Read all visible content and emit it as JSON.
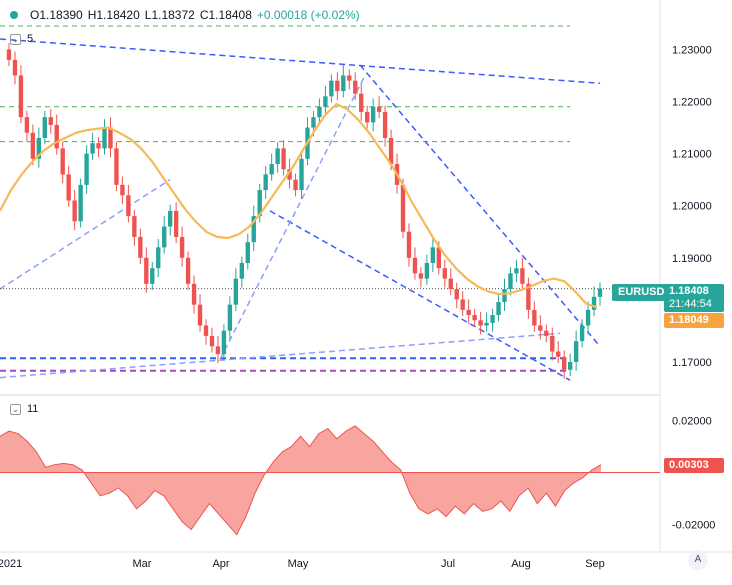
{
  "header": {
    "open": "O1.18390",
    "high": "H1.18420",
    "low": "L1.18372",
    "close": "C1.18408",
    "change": "+0.00018 (+0.02%)",
    "change_color": "#26a69a"
  },
  "indicators": {
    "ma_period": "5",
    "osc_period": "11"
  },
  "badges": {
    "symbol": "EURUSD",
    "last_price": "1.18408",
    "countdown": "21:44:54",
    "ma_value": "1.18049",
    "osc_value": "0.00303"
  },
  "chart_data": {
    "type": "line",
    "instrument": "EURUSD",
    "colors": {
      "up": "#26a69a",
      "down": "#ef5350",
      "ma": "#f7b956",
      "trendline": "#3d5afe",
      "support": "#2962ff",
      "green_levels": "#4caf50",
      "purple_level": "#ab47bc",
      "osc_fill": "#f8958e",
      "osc_line": "#ef5350"
    },
    "price_axis": {
      "ticks": [
        "1.23000",
        "1.22000",
        "1.21000",
        "1.20000",
        "1.19000",
        "1.17000"
      ],
      "ylim": [
        1.165,
        1.2345
      ]
    },
    "osc_axis": {
      "ticks": [
        "0.02000",
        "-0.02000"
      ],
      "ylim": [
        -0.028,
        0.028
      ]
    },
    "time_axis": [
      "2021",
      "Mar",
      "Apr",
      "May",
      "Jul",
      "Aug",
      "Sep"
    ],
    "last_price_value": 1.18408,
    "ma_last_value": 1.18049,
    "osc_last_value": 0.00303,
    "close_series": [
      1.228,
      1.225,
      1.217,
      1.214,
      1.209,
      1.213,
      1.217,
      1.2155,
      1.211,
      1.206,
      1.201,
      1.197,
      1.204,
      1.21,
      1.212,
      1.211,
      1.215,
      1.211,
      1.204,
      1.202,
      1.198,
      1.194,
      1.19,
      1.185,
      1.188,
      1.192,
      1.196,
      1.199,
      1.194,
      1.19,
      1.185,
      1.181,
      1.177,
      1.175,
      1.173,
      1.1715,
      1.176,
      1.181,
      1.186,
      1.189,
      1.193,
      1.198,
      1.203,
      1.206,
      1.208,
      1.211,
      1.207,
      1.205,
      1.203,
      1.209,
      1.215,
      1.217,
      1.219,
      1.221,
      1.224,
      1.222,
      1.225,
      1.224,
      1.2215,
      1.218,
      1.216,
      1.219,
      1.218,
      1.213,
      1.208,
      1.204,
      1.195,
      1.19,
      1.187,
      1.186,
      1.189,
      1.192,
      1.188,
      1.186,
      1.184,
      1.182,
      1.18,
      1.179,
      1.178,
      1.177,
      1.1775,
      1.179,
      1.1815,
      1.184,
      1.187,
      1.188,
      1.185,
      1.18,
      1.177,
      1.176,
      1.175,
      1.172,
      1.171,
      1.1685,
      1.17,
      1.174,
      1.177,
      1.18,
      1.1825,
      1.1841
    ],
    "ma_series": [
      1.199,
      1.203,
      1.206,
      1.2085,
      1.2105,
      1.212,
      1.213,
      1.214,
      1.2145,
      1.2148,
      1.215,
      1.214,
      1.2128,
      1.211,
      1.2085,
      1.2055,
      1.2025,
      1.1995,
      1.197,
      1.195,
      1.194,
      1.1938,
      1.1945,
      1.196,
      1.1985,
      1.2015,
      1.2045,
      1.2075,
      1.211,
      1.2145,
      1.2175,
      1.2195,
      1.2185,
      1.2165,
      1.214,
      1.211,
      1.208,
      1.2045,
      1.2005,
      1.197,
      1.1935,
      1.1905,
      1.188,
      1.186,
      1.1845,
      1.1835,
      1.183,
      1.1832,
      1.1838,
      1.1846,
      1.1855,
      1.186,
      1.1855,
      1.1835,
      1.1812,
      1.1805
    ],
    "osc_series": [
      0.014,
      0.016,
      0.015,
      0.012,
      0.008,
      0.002,
      0.003,
      0.0035,
      0.003,
      0.001,
      -0.004,
      -0.009,
      -0.008,
      -0.006,
      -0.009,
      -0.014,
      -0.011,
      -0.007,
      -0.009,
      -0.014,
      -0.019,
      -0.022,
      -0.017,
      -0.012,
      -0.016,
      -0.02,
      -0.024,
      -0.017,
      -0.008,
      -0.001,
      0.004,
      0.008,
      0.01,
      0.014,
      0.01,
      0.015,
      0.017,
      0.013,
      0.016,
      0.018,
      0.015,
      0.012,
      0.008,
      0.004,
      0.001,
      -0.008,
      -0.014,
      -0.016,
      -0.014,
      -0.017,
      -0.013,
      -0.016,
      -0.012,
      -0.015,
      -0.014,
      -0.011,
      -0.015,
      -0.009,
      -0.006,
      -0.012,
      -0.008,
      -0.013,
      -0.007,
      -0.004,
      -0.002,
      0.001,
      0.003
    ],
    "horizontal_levels": [
      {
        "value": 1.2345,
        "kind": "green_levels"
      },
      {
        "value": 1.219,
        "kind": "green_levels"
      },
      {
        "value": 1.2123,
        "kind": "green_levels"
      },
      {
        "value": 1.1707,
        "kind": "support"
      },
      {
        "value": 1.1683,
        "kind": "purple_level"
      }
    ]
  }
}
